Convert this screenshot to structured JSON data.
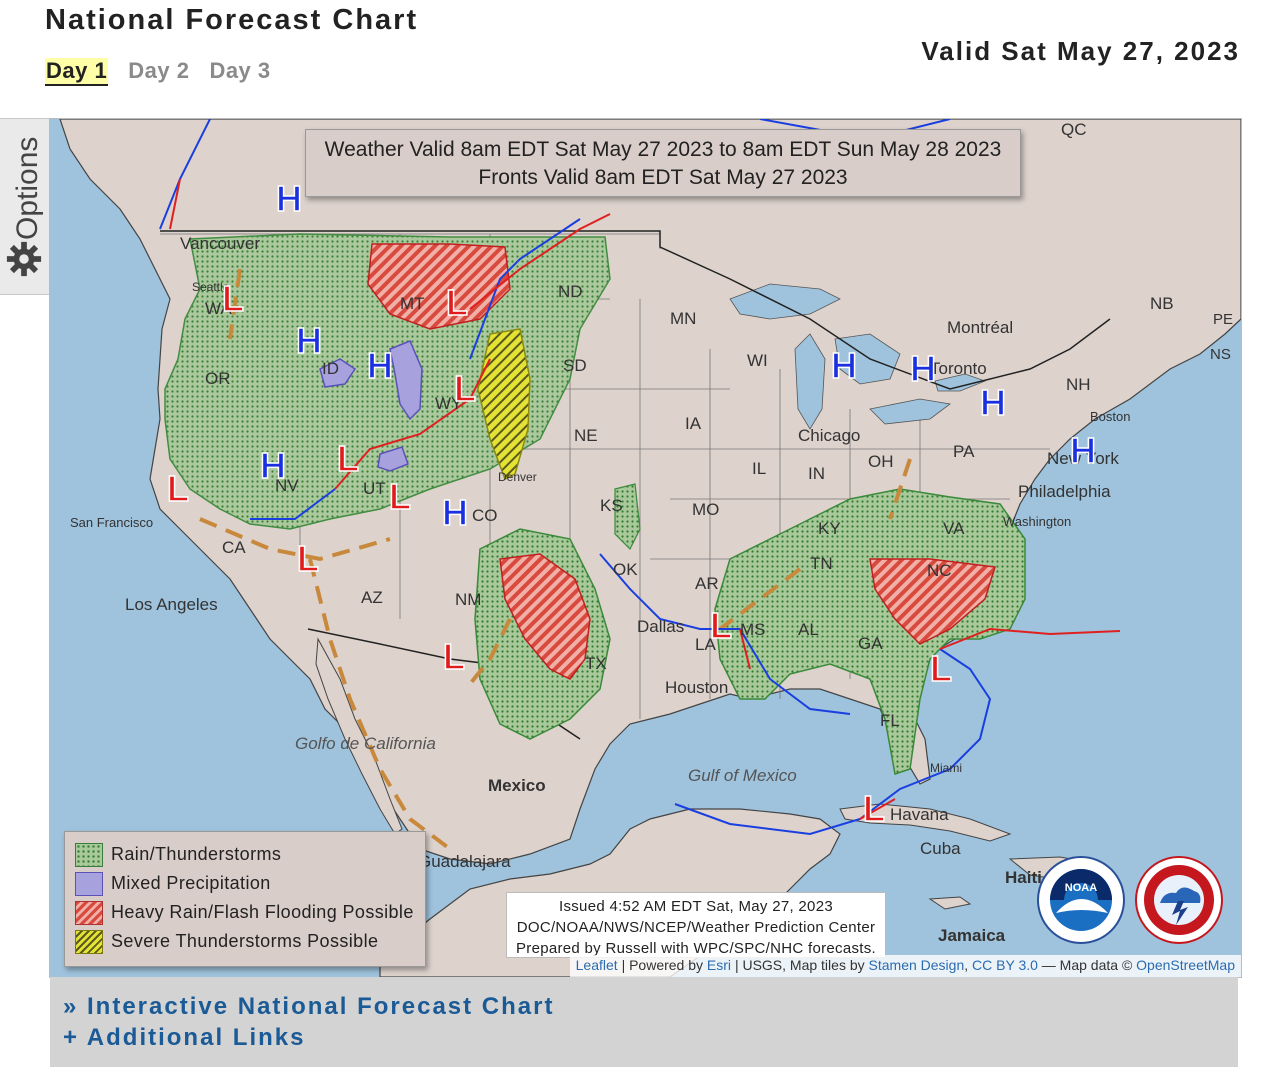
{
  "page": {
    "title": "National Forecast Chart",
    "valid_date": "Valid Sat May 27, 2023"
  },
  "day_tabs": [
    "Day 1",
    "Day 2",
    "Day 3"
  ],
  "options_tab": {
    "label": "Options",
    "icon": "gear-icon"
  },
  "map": {
    "header_line1": "Weather Valid 8am EDT Sat May 27 2023 to 8am EDT Sun May 28 2023",
    "header_line2": "Fronts Valid 8am EDT Sat May 27 2023",
    "legend": [
      {
        "label": "Rain/Thunderstorms",
        "color": "#a9c99a"
      },
      {
        "label": "Mixed Precipitation",
        "color": "#a7a1dd"
      },
      {
        "label": "Heavy Rain/Flash Flooding Possible",
        "color": "#d84a3e"
      },
      {
        "label": "Severe Thunderstorms Possible",
        "color": "#e5e236"
      }
    ],
    "issued": {
      "line1": "Issued 4:52 AM EDT Sat, May 27, 2023",
      "line2": "DOC/NOAA/NWS/NCEP/Weather Prediction Center",
      "line3": "Prepared by Russell with WPC/SPC/NHC forecasts."
    },
    "attribution": {
      "leaflet": "Leaflet",
      "powered_by": "| Powered by",
      "esri": "Esri",
      "tiles": "| USGS, Map tiles by",
      "stamen": "Stamen Design",
      "cc": "CC BY 3.0",
      "data": "— Map data ©",
      "osm": "OpenStreetMap"
    },
    "places": [
      "QC",
      "Vancouver",
      "Seattle",
      "WA",
      "OR",
      "ID",
      "MT",
      "ND",
      "MN",
      "SD",
      "WY",
      "NE",
      "IA",
      "WI",
      "Chicago",
      "IL",
      "IN",
      "OH",
      "PA",
      "Montréal",
      "Toronto",
      "NB",
      "NH",
      "Boston",
      "New York",
      "Philadelphia",
      "Washington",
      "VA",
      "KY",
      "TN",
      "NC",
      "GA",
      "AL",
      "MS",
      "LA",
      "AR",
      "OK",
      "KS",
      "MO",
      "TX",
      "Dallas",
      "Houston",
      "FL",
      "Miami",
      "Havana",
      "Cuba",
      "CO",
      "Denver",
      "UT",
      "NV",
      "CA",
      "San Francisco",
      "Los Angeles",
      "AZ",
      "NM",
      "Mexico",
      "Golfo de California",
      "Gulf of Mexico",
      "Guadalajara",
      "Jamaica",
      "Haiti",
      "NS",
      "PE"
    ],
    "pressure_centers": {
      "high": "H",
      "low": "L"
    },
    "colors": {
      "front_cold": "#1a3fe0",
      "front_warm": "#e02020",
      "trough": "#c8893c",
      "pressure_high": "#1a2fe0",
      "pressure_low": "#e11b1b"
    }
  },
  "footer": {
    "interactive_link": "» Interactive National Forecast Chart",
    "additional_link": "+ Additional Links"
  }
}
